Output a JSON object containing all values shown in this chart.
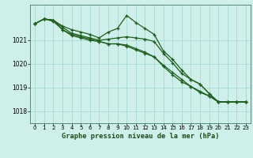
{
  "background_color": "#cff0ea",
  "grid_color": "#aaddd6",
  "line_color": "#1e5e1e",
  "xlabel": "Graphe pression niveau de la mer (hPa)",
  "ylim": [
    1017.5,
    1022.5
  ],
  "xlim": [
    -0.5,
    23.5
  ],
  "yticks": [
    1018,
    1019,
    1020,
    1021
  ],
  "xticks": [
    0,
    1,
    2,
    3,
    4,
    5,
    6,
    7,
    8,
    9,
    10,
    11,
    12,
    13,
    14,
    15,
    16,
    17,
    18,
    19,
    20,
    21,
    22,
    23
  ],
  "series": [
    [
      1021.7,
      1021.9,
      1021.85,
      1021.6,
      1021.45,
      1021.35,
      1021.25,
      1021.1,
      1021.35,
      1021.5,
      1022.05,
      1021.75,
      1021.5,
      1021.25,
      1020.55,
      1020.2,
      1019.75,
      1019.35,
      1019.15,
      1018.75,
      1018.4,
      1018.4,
      1018.4,
      1018.4
    ],
    [
      1021.7,
      1021.9,
      1021.85,
      1021.55,
      1021.3,
      1021.2,
      1021.1,
      1021.0,
      1021.05,
      1021.1,
      1021.15,
      1021.1,
      1021.05,
      1020.95,
      1020.45,
      1020.05,
      1019.6,
      1019.35,
      1019.15,
      1018.75,
      1018.4,
      1018.4,
      1018.4,
      1018.4
    ],
    [
      1021.7,
      1021.9,
      1021.85,
      1021.45,
      1021.25,
      1021.15,
      1021.05,
      1020.95,
      1020.85,
      1020.85,
      1020.75,
      1020.6,
      1020.45,
      1020.3,
      1019.9,
      1019.55,
      1019.25,
      1019.05,
      1018.85,
      1018.65,
      1018.4,
      1018.4,
      1018.4,
      1018.4
    ],
    [
      1021.7,
      1021.9,
      1021.8,
      1021.45,
      1021.2,
      1021.1,
      1021.0,
      1020.95,
      1020.85,
      1020.85,
      1020.8,
      1020.65,
      1020.5,
      1020.3,
      1019.95,
      1019.65,
      1019.35,
      1019.05,
      1018.8,
      1018.65,
      1018.4,
      1018.4,
      1018.4,
      1018.4
    ]
  ]
}
